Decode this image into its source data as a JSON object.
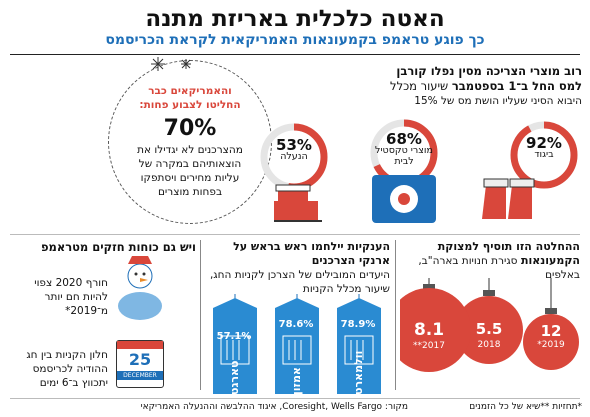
{
  "title": "האטה כלכלית באריזת מתנה",
  "subtitle": "כך פוגע טראמפ בקמעונאות האמריקאית לקראת הכריסמס",
  "tariff_section": {
    "heading_line1": "רוב מוצרי הצריכה מסין נפלו קורבן",
    "heading_line2": "למס החל ב־1 בספטמבר",
    "heading_rest": "שיעור מכלל",
    "sub": "היבוא הסיני שעליו הושת מס של 15%",
    "items": [
      {
        "pct": "92%",
        "label": "ביגוד",
        "value": 92
      },
      {
        "pct": "68%",
        "label": "מוצרי טקסטיל לבית",
        "value": 68
      },
      {
        "pct": "53%",
        "label": "הנעלה",
        "value": 53
      }
    ]
  },
  "consumers_box": {
    "red_text": "והאמריקאים כבר החליטו לצבוע פחות:",
    "pct": "70%",
    "text": "מהצרכנים לא יגדילו את הוצאותיהם במקרה של עליות מחירים ויסתפקו בפחות מוצרים"
  },
  "retail_section": {
    "heading": "ההחלטה הזו תוסיף למצוקת הקמעונאות",
    "sub": "סגירת חנויות בארה\"ב, באלפים",
    "ornaments": [
      {
        "value": "12",
        "year": "*2019"
      },
      {
        "value": "5.5",
        "year": "2018"
      },
      {
        "value": "8.1",
        "year": "**2017"
      }
    ]
  },
  "giants_section": {
    "heading": "הענקיות יילחמו ראש בראש על ארנקי הצרכנים",
    "sub": "היעדים המובילים של הצרכן לקניות החג, שיעור מכלל הקניות",
    "tags": [
      {
        "pct": "78.9%",
        "name": "וולמארט"
      },
      {
        "pct": "78.6%",
        "name": "אמזון"
      },
      {
        "pct": "57.1%",
        "name": "טארגט"
      }
    ]
  },
  "weather_section": {
    "heading": "ויש גם כוחות חזקים מטראמפ",
    "item1": "חורף 2020 צפוי להיות חם יותר מ־2019*",
    "item2": "חלון הקניות בין חג ההודיה לכריסמס יתכווץ ב־6 ימים",
    "calendar_day": "25",
    "calendar_month": "DECEMBER"
  },
  "footer": {
    "notes": "*תחזיות **שיא של כל הזמנים",
    "source": "מקור: Coresight, Wells Fargo, איגוד ההלבשה וההנעלה האמריקאי"
  },
  "colors": {
    "blue": "#1e6fb8",
    "red": "#d9473b",
    "tag_blue": "#2a8bd2"
  }
}
